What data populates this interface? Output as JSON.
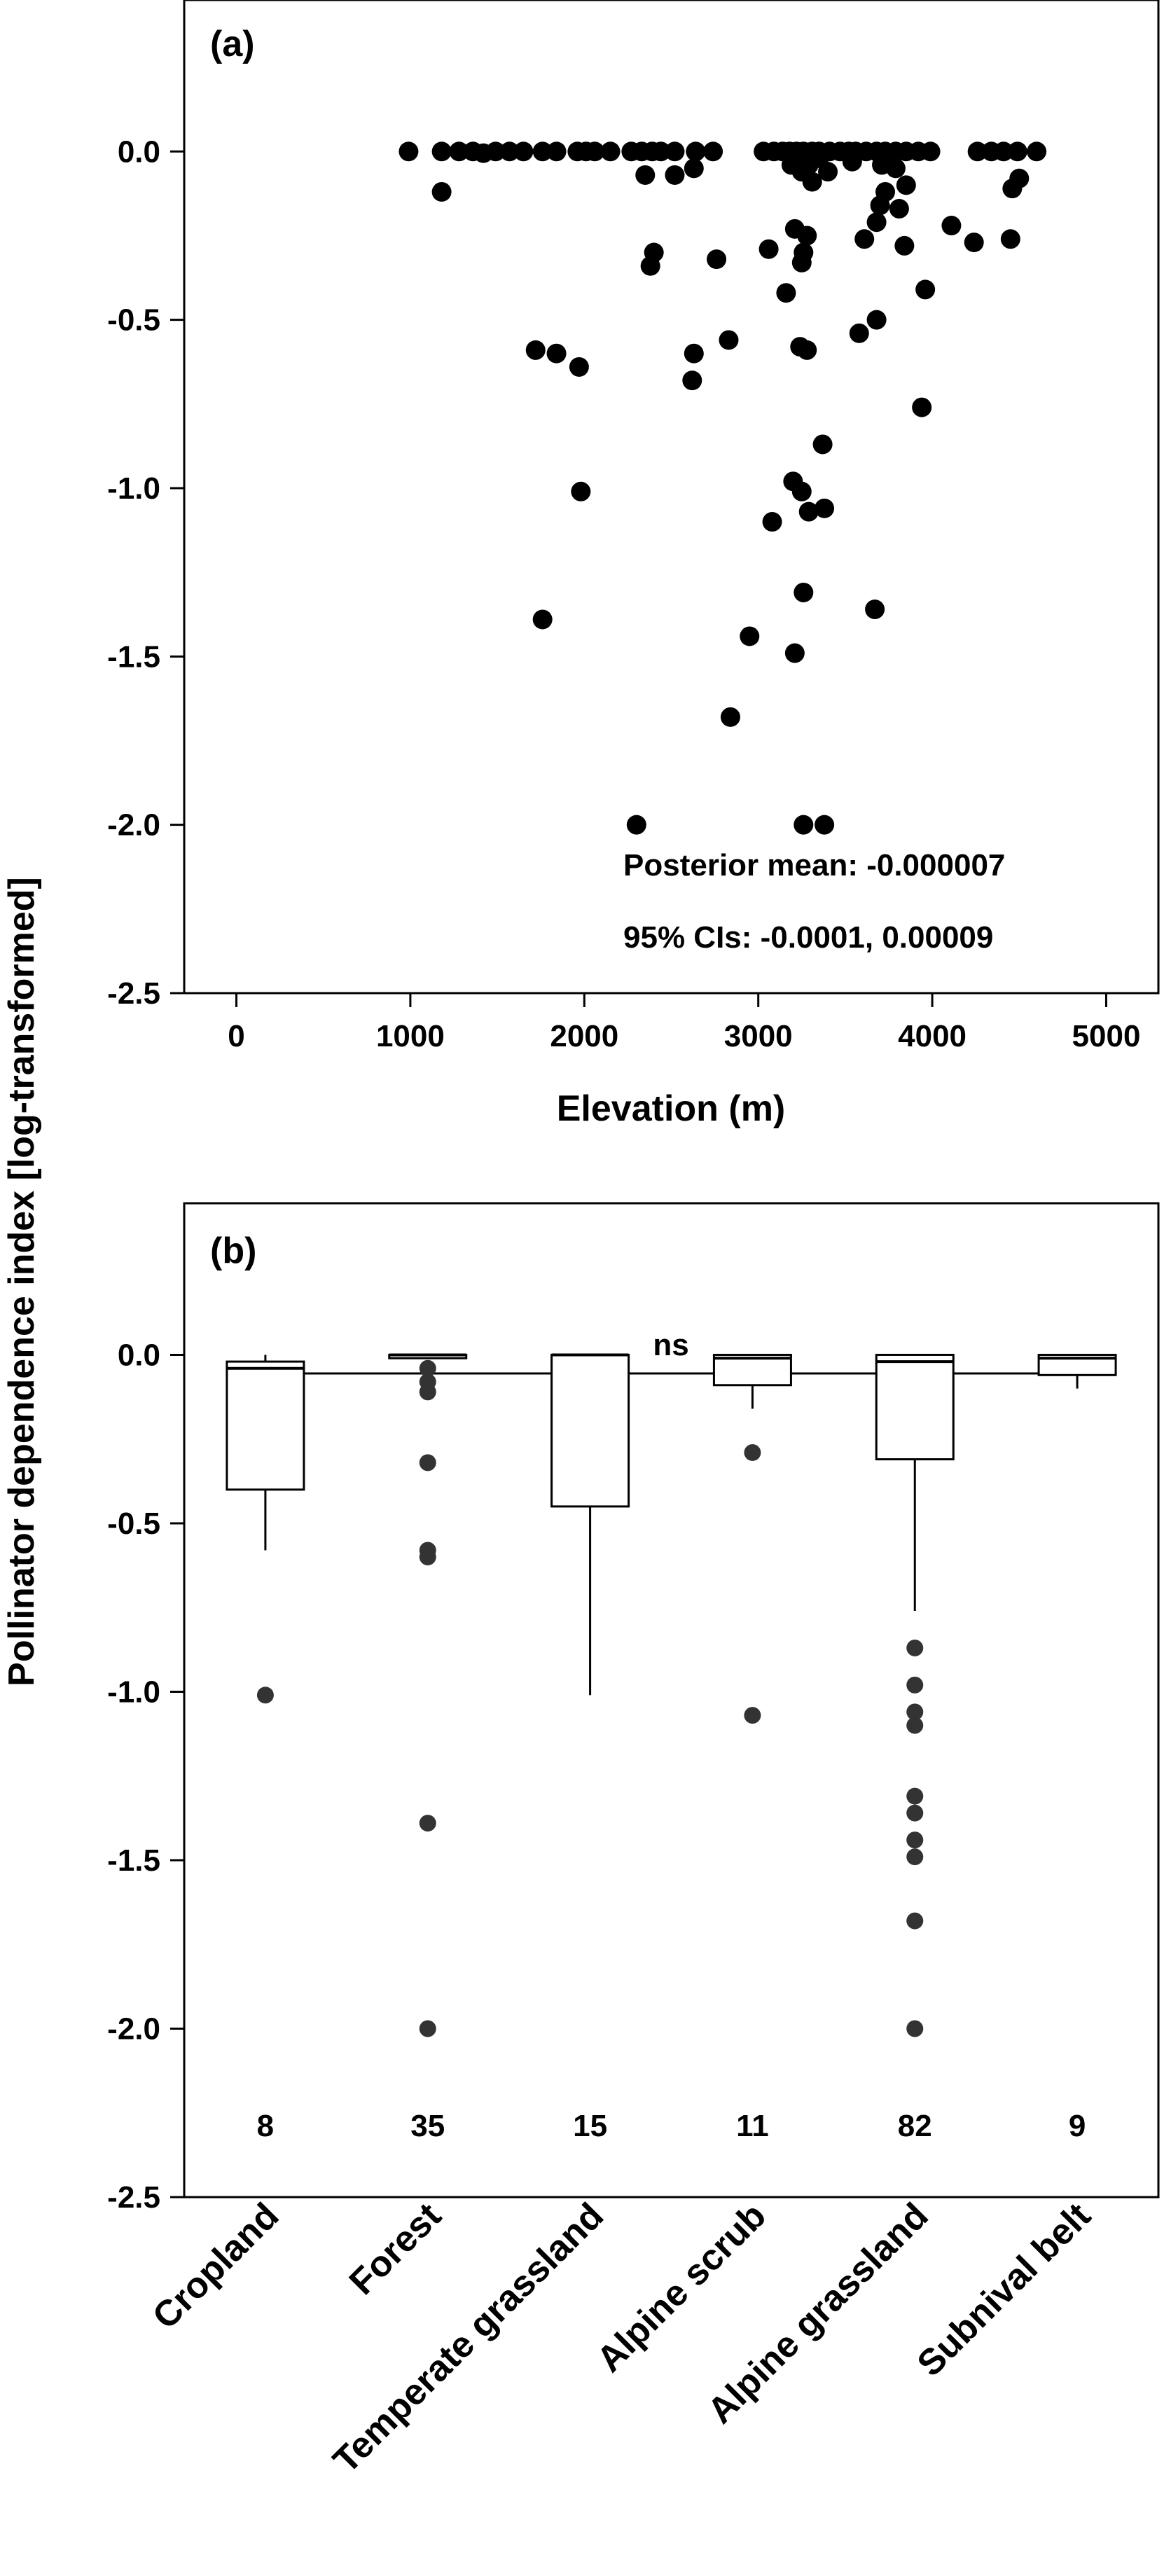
{
  "ylabel": "Pollinator dependence index [log-transformed]",
  "chart_data": [
    {
      "type": "scatter",
      "panel_label": "(a)",
      "xlabel": "Elevation (m)",
      "ylabel": "Pollinator dependence index [log-transformed]",
      "xlim": [
        -300,
        5300
      ],
      "ylim": [
        -2.5,
        0.45
      ],
      "xticks": [
        0,
        1000,
        2000,
        3000,
        4000,
        5000
      ],
      "yticks": [
        0.0,
        -0.5,
        -1.0,
        -1.5,
        -2.0,
        -2.5
      ],
      "xtick_labels": [
        "0",
        "1000",
        "2000",
        "3000",
        "4000",
        "5000"
      ],
      "ytick_labels": [
        "0.0",
        "-0.5",
        "-1.0",
        "-1.5",
        "-2.0",
        "-2.5"
      ],
      "annotations": [
        "Posterior mean: -0.000007",
        "95%  CIs: -0.0001, 0.00009"
      ],
      "points": [
        [
          990,
          0.0
        ],
        [
          1180,
          0.0
        ],
        [
          1280,
          0.0
        ],
        [
          1360,
          0.0
        ],
        [
          1420,
          -0.005
        ],
        [
          1490,
          0.0
        ],
        [
          1570,
          0.0
        ],
        [
          1650,
          0.0
        ],
        [
          1760,
          0.0
        ],
        [
          1840,
          0.0
        ],
        [
          1960,
          0.0
        ],
        [
          2010,
          0.0
        ],
        [
          2060,
          0.0
        ],
        [
          2150,
          0.0
        ],
        [
          2270,
          0.0
        ],
        [
          2330,
          0.0
        ],
        [
          2390,
          0.0
        ],
        [
          2440,
          0.0
        ],
        [
          2520,
          0.0
        ],
        [
          2640,
          0.0
        ],
        [
          2740,
          0.0
        ],
        [
          3030,
          0.0
        ],
        [
          3090,
          0.0
        ],
        [
          3140,
          0.0
        ],
        [
          3180,
          0.0
        ],
        [
          3220,
          0.0
        ],
        [
          3260,
          0.0
        ],
        [
          3310,
          0.0
        ],
        [
          3350,
          0.0
        ],
        [
          3410,
          0.0
        ],
        [
          3470,
          0.0
        ],
        [
          3520,
          0.0
        ],
        [
          3560,
          0.0
        ],
        [
          3620,
          0.0
        ],
        [
          3680,
          0.0
        ],
        [
          3730,
          0.0
        ],
        [
          3790,
          0.0
        ],
        [
          3850,
          0.0
        ],
        [
          3920,
          0.0
        ],
        [
          3990,
          0.0
        ],
        [
          4260,
          0.0
        ],
        [
          4340,
          0.0
        ],
        [
          4410,
          0.0
        ],
        [
          4490,
          0.0
        ],
        [
          4600,
          0.0
        ],
        [
          1180,
          -0.12
        ],
        [
          2350,
          -0.07
        ],
        [
          2520,
          -0.07
        ],
        [
          2630,
          -0.05
        ],
        [
          3190,
          -0.04
        ],
        [
          3290,
          -0.04
        ],
        [
          3400,
          -0.06
        ],
        [
          3540,
          -0.03
        ],
        [
          3710,
          -0.04
        ],
        [
          3790,
          -0.05
        ],
        [
          3220,
          -0.01
        ],
        [
          3250,
          -0.06
        ],
        [
          3310,
          -0.09
        ],
        [
          3350,
          -0.02
        ],
        [
          3730,
          -0.12
        ],
        [
          3850,
          -0.1
        ],
        [
          4460,
          -0.11
        ],
        [
          4500,
          -0.08
        ],
        [
          2400,
          -0.3
        ],
        [
          2380,
          -0.34
        ],
        [
          2760,
          -0.32
        ],
        [
          3060,
          -0.29
        ],
        [
          3160,
          -0.42
        ],
        [
          3210,
          -0.23
        ],
        [
          3260,
          -0.3
        ],
        [
          3280,
          -0.25
        ],
        [
          3250,
          -0.33
        ],
        [
          3610,
          -0.26
        ],
        [
          3680,
          -0.21
        ],
        [
          3700,
          -0.16
        ],
        [
          3810,
          -0.17
        ],
        [
          3840,
          -0.28
        ],
        [
          3960,
          -0.41
        ],
        [
          4110,
          -0.22
        ],
        [
          4240,
          -0.27
        ],
        [
          4450,
          -0.26
        ],
        [
          1720,
          -0.59
        ],
        [
          1840,
          -0.6
        ],
        [
          1970,
          -0.64
        ],
        [
          2630,
          -0.6
        ],
        [
          2620,
          -0.68
        ],
        [
          2830,
          -0.56
        ],
        [
          3240,
          -0.58
        ],
        [
          3280,
          -0.59
        ],
        [
          3580,
          -0.54
        ],
        [
          3680,
          -0.5
        ],
        [
          3940,
          -0.76
        ],
        [
          3370,
          -0.87
        ],
        [
          1980,
          -1.01
        ],
        [
          3080,
          -1.1
        ],
        [
          3200,
          -0.98
        ],
        [
          3250,
          -1.01
        ],
        [
          3290,
          -1.07
        ],
        [
          3380,
          -1.06
        ],
        [
          1760,
          -1.39
        ],
        [
          2950,
          -1.44
        ],
        [
          3260,
          -1.31
        ],
        [
          3670,
          -1.36
        ],
        [
          3210,
          -1.49
        ],
        [
          2840,
          -1.68
        ],
        [
          2300,
          -2.0
        ],
        [
          3260,
          -2.0
        ],
        [
          3380,
          -2.0
        ]
      ]
    },
    {
      "type": "box",
      "panel_label": "(b)",
      "significance": "ns",
      "ylim": [
        -2.5,
        0.45
      ],
      "yticks": [
        0.0,
        -0.5,
        -1.0,
        -1.5,
        -2.0,
        -2.5
      ],
      "ytick_labels": [
        "0.0",
        "-0.5",
        "-1.0",
        "-1.5",
        "-2.0",
        "-2.5"
      ],
      "categories": [
        "Cropland",
        "Forest",
        "Temperate grassland",
        "Alpine scrub",
        "Alpine grassland",
        "Subnival belt"
      ],
      "counts": [
        "8",
        "35",
        "15",
        "11",
        "82",
        "9"
      ],
      "boxes": [
        {
          "q1": -0.4,
          "median": -0.04,
          "q3": -0.02,
          "whisker_low": -0.58,
          "whisker_high": 0.0,
          "outliers": [
            -1.01
          ]
        },
        {
          "q1": -0.01,
          "median": 0.0,
          "q3": 0.0,
          "whisker_low": -0.01,
          "whisker_high": 0.0,
          "outliers": [
            -0.04,
            -0.08,
            -0.11,
            -0.32,
            -0.58,
            -0.6,
            -1.39,
            -2.0
          ]
        },
        {
          "q1": -0.45,
          "median": 0.0,
          "q3": 0.0,
          "whisker_low": -1.01,
          "whisker_high": 0.0,
          "outliers": []
        },
        {
          "q1": -0.09,
          "median": -0.01,
          "q3": 0.0,
          "whisker_low": -0.16,
          "whisker_high": 0.0,
          "outliers": [
            -0.29,
            -1.07
          ]
        },
        {
          "q1": -0.31,
          "median": -0.02,
          "q3": 0.0,
          "whisker_low": -0.76,
          "whisker_high": 0.0,
          "outliers": [
            -0.87,
            -0.98,
            -1.06,
            -1.1,
            -1.31,
            -1.36,
            -1.44,
            -1.49,
            -1.68,
            -2.0
          ]
        },
        {
          "q1": -0.06,
          "median": -0.01,
          "q3": 0.0,
          "whisker_low": -0.1,
          "whisker_high": 0.0,
          "outliers": []
        }
      ]
    }
  ]
}
